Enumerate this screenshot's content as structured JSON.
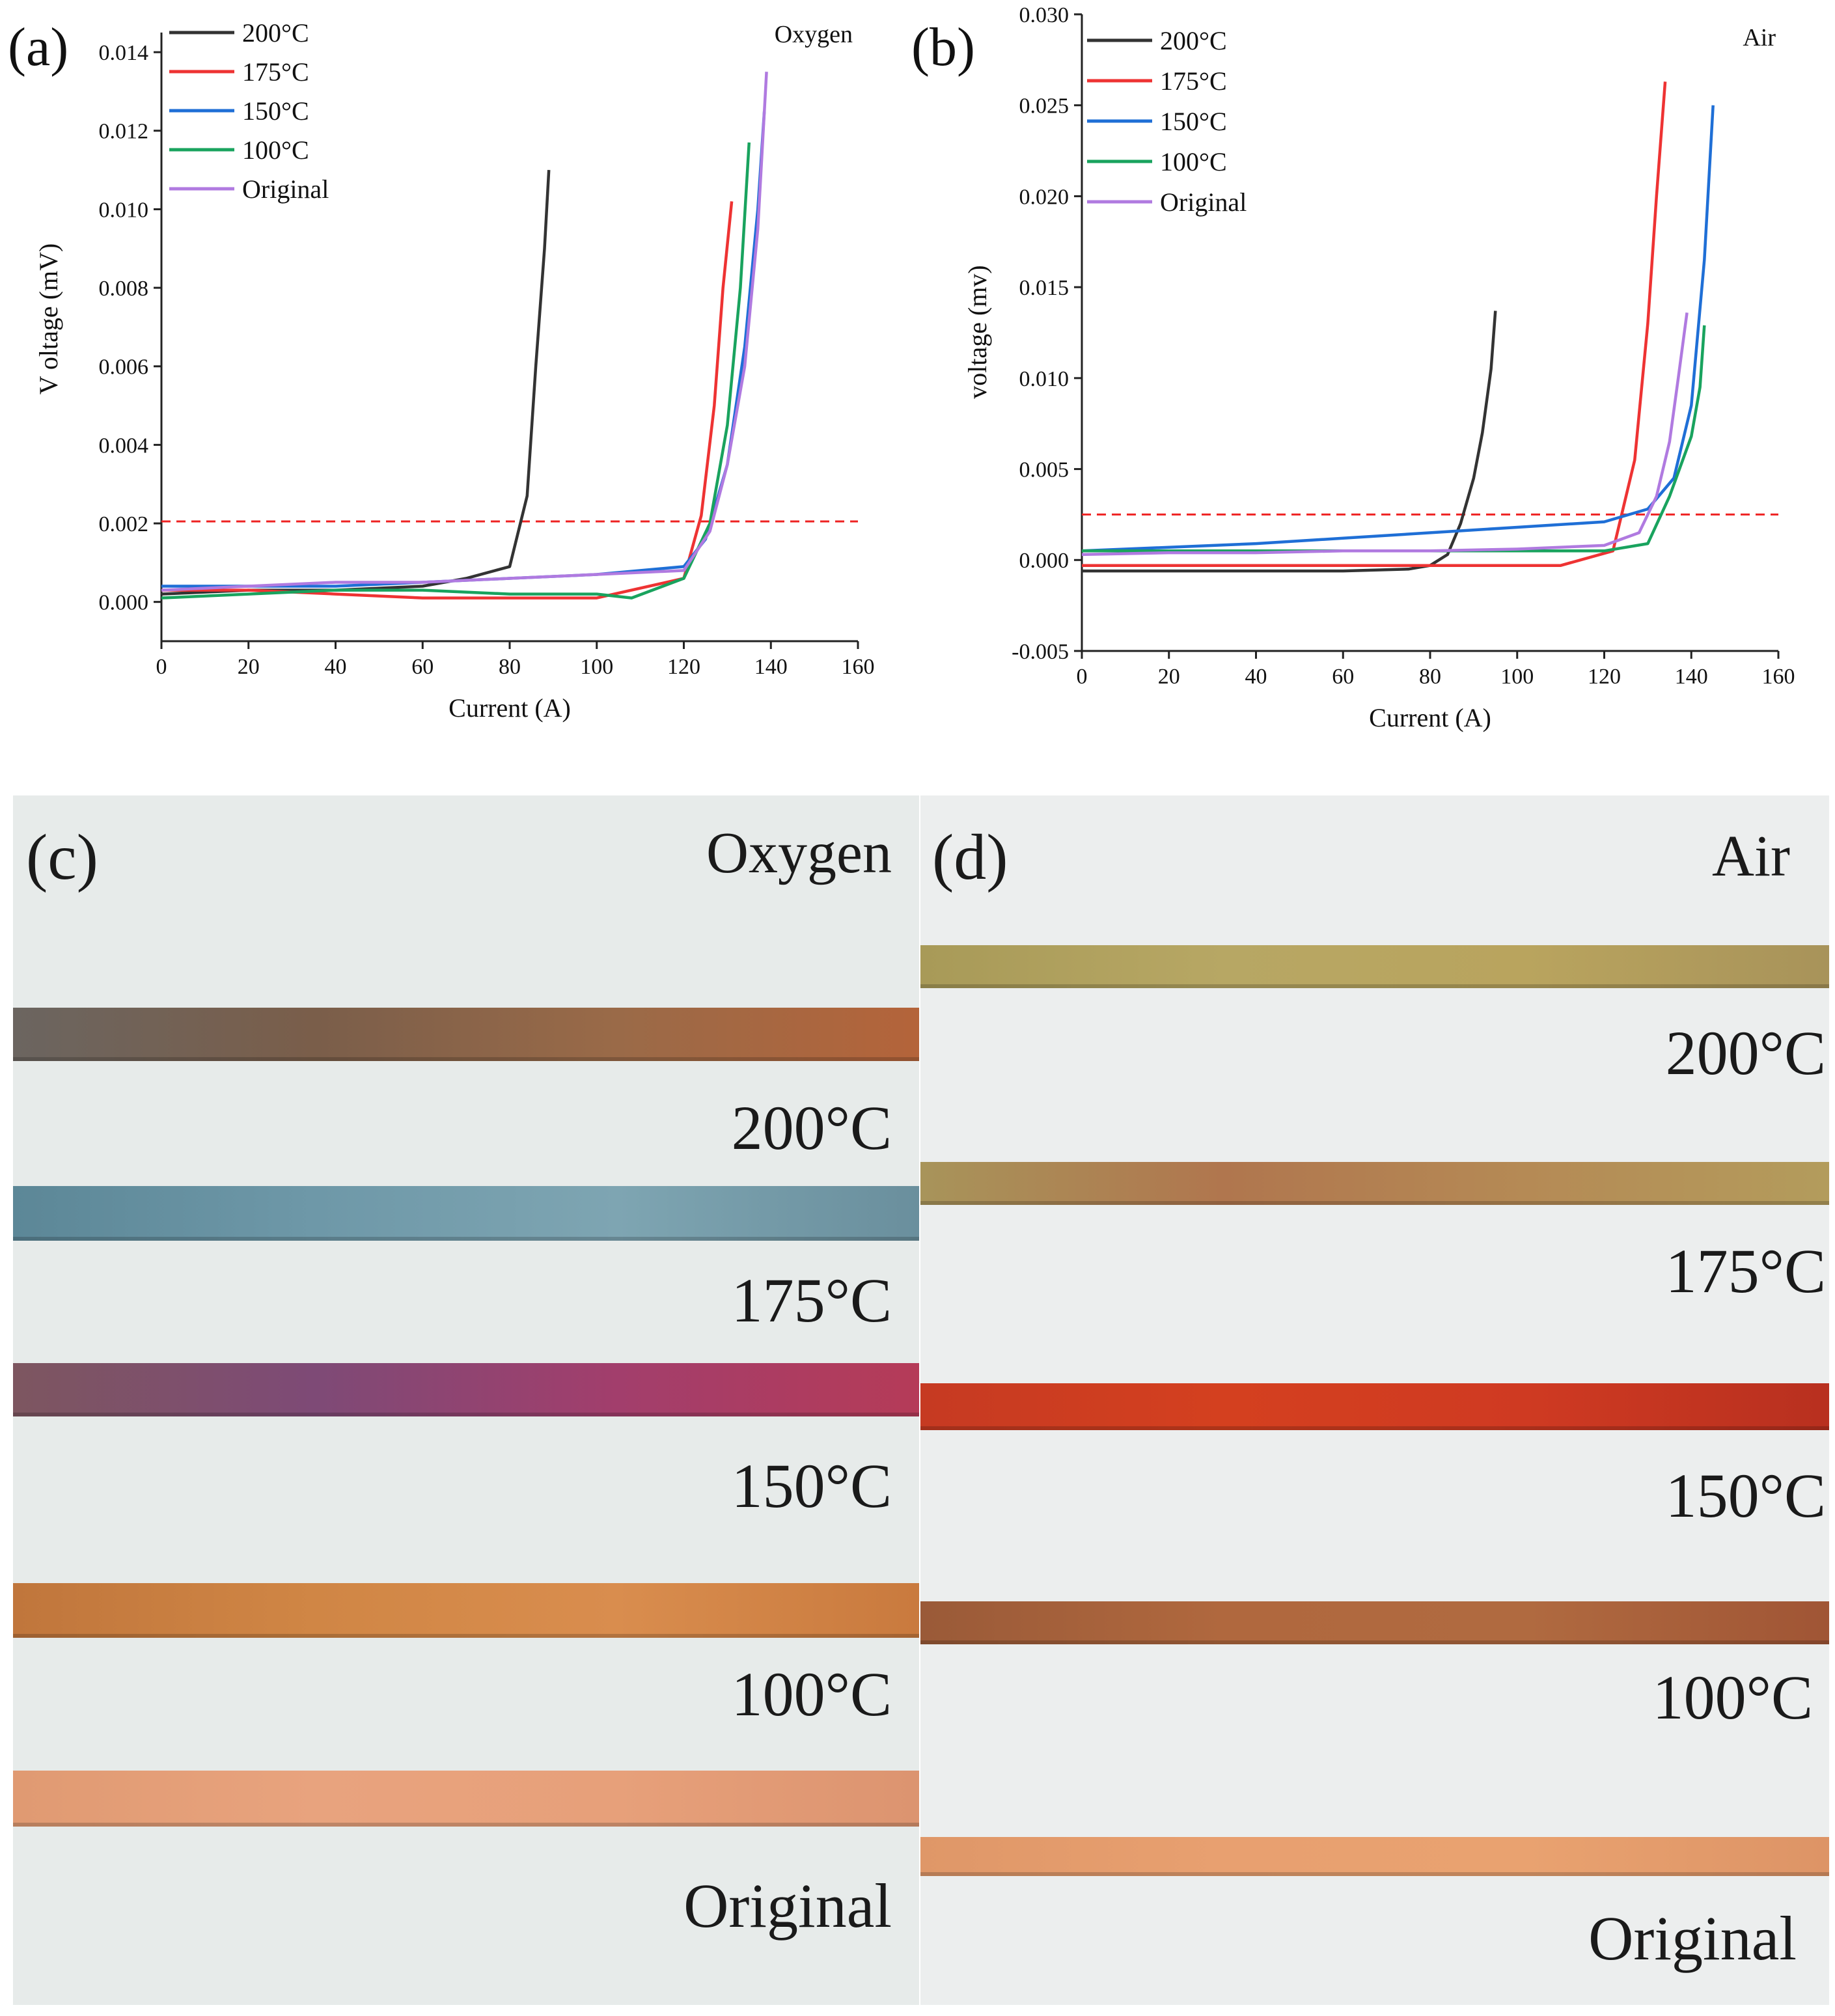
{
  "chart_data": [
    {
      "type": "line",
      "panel_label": "(a)",
      "atmosphere_label": "Oxygen",
      "xlabel": "Current (A)",
      "ylabel": "V oltage (mV)",
      "xlim": [
        0,
        160
      ],
      "ylim": [
        -0.001,
        0.0145
      ],
      "xticks": [
        "0",
        "20",
        "40",
        "60",
        "80",
        "100",
        "120",
        "140",
        "160"
      ],
      "yticks": [
        "0.000",
        "0.002",
        "0.004",
        "0.006",
        "0.008",
        "0.010",
        "0.012",
        "0.014"
      ],
      "threshold": 0.00205,
      "series": [
        {
          "name": "200°C",
          "color": "#333333",
          "points": [
            [
              0,
              0.0002
            ],
            [
              20,
              0.0003
            ],
            [
              40,
              0.0003
            ],
            [
              60,
              0.0004
            ],
            [
              70,
              0.0006
            ],
            [
              80,
              0.0009
            ],
            [
              84,
              0.0027
            ],
            [
              86,
              0.006
            ],
            [
              88,
              0.009
            ],
            [
              89,
              0.011
            ]
          ]
        },
        {
          "name": "175°C",
          "color": "#ee3333",
          "points": [
            [
              0,
              0.0003
            ],
            [
              20,
              0.0003
            ],
            [
              40,
              0.0002
            ],
            [
              60,
              0.0001
            ],
            [
              80,
              0.0001
            ],
            [
              100,
              0.0001
            ],
            [
              120,
              0.0006
            ],
            [
              124,
              0.0022
            ],
            [
              127,
              0.005
            ],
            [
              129,
              0.008
            ],
            [
              131,
              0.0102
            ]
          ]
        },
        {
          "name": "150°C",
          "color": "#1f6fd6",
          "points": [
            [
              0,
              0.0004
            ],
            [
              20,
              0.0004
            ],
            [
              40,
              0.0004
            ],
            [
              60,
              0.0005
            ],
            [
              80,
              0.0006
            ],
            [
              100,
              0.0007
            ],
            [
              120,
              0.0009
            ],
            [
              125,
              0.0016
            ],
            [
              130,
              0.0035
            ],
            [
              134,
              0.0065
            ],
            [
              137,
              0.01
            ],
            [
              138.5,
              0.0125
            ]
          ]
        },
        {
          "name": "100°C",
          "color": "#19a35e",
          "points": [
            [
              0,
              0.0001
            ],
            [
              20,
              0.0002
            ],
            [
              40,
              0.0003
            ],
            [
              60,
              0.0003
            ],
            [
              80,
              0.0002
            ],
            [
              100,
              0.0002
            ],
            [
              108,
              0.0001
            ],
            [
              120,
              0.0006
            ],
            [
              126,
              0.002
            ],
            [
              130,
              0.0045
            ],
            [
              133,
              0.008
            ],
            [
              135,
              0.0117
            ]
          ]
        },
        {
          "name": "Original",
          "color": "#b07ae0",
          "points": [
            [
              0,
              0.0003
            ],
            [
              20,
              0.0004
            ],
            [
              40,
              0.0005
            ],
            [
              60,
              0.0005
            ],
            [
              80,
              0.0006
            ],
            [
              100,
              0.0007
            ],
            [
              120,
              0.0008
            ],
            [
              126,
              0.0018
            ],
            [
              130,
              0.0035
            ],
            [
              134,
              0.006
            ],
            [
              137,
              0.0095
            ],
            [
              139,
              0.0135
            ]
          ]
        }
      ]
    },
    {
      "type": "line",
      "panel_label": "(b)",
      "atmosphere_label": "Air",
      "xlabel": "Current (A)",
      "ylabel": "voltage (mv)",
      "xlim": [
        0,
        160
      ],
      "ylim": [
        -0.005,
        0.03
      ],
      "xticks": [
        "0",
        "20",
        "40",
        "60",
        "80",
        "100",
        "120",
        "140",
        "160"
      ],
      "yticks": [
        "-0.005",
        "0.000",
        "0.005",
        "0.010",
        "0.015",
        "0.020",
        "0.025",
        "0.030"
      ],
      "threshold": 0.0025,
      "series": [
        {
          "name": "200°C",
          "color": "#333333",
          "points": [
            [
              0,
              -0.0006
            ],
            [
              20,
              -0.0006
            ],
            [
              40,
              -0.0006
            ],
            [
              60,
              -0.0006
            ],
            [
              75,
              -0.0005
            ],
            [
              80,
              -0.0003
            ],
            [
              84,
              0.0003
            ],
            [
              87,
              0.002
            ],
            [
              90,
              0.0045
            ],
            [
              92,
              0.007
            ],
            [
              94,
              0.0105
            ],
            [
              95,
              0.0137
            ]
          ]
        },
        {
          "name": "175°C",
          "color": "#ee3333",
          "points": [
            [
              0,
              -0.0003
            ],
            [
              20,
              -0.0003
            ],
            [
              40,
              -0.0003
            ],
            [
              60,
              -0.0003
            ],
            [
              80,
              -0.0003
            ],
            [
              100,
              -0.0003
            ],
            [
              110,
              -0.0003
            ],
            [
              122,
              0.0005
            ],
            [
              127,
              0.0055
            ],
            [
              130,
              0.013
            ],
            [
              132,
              0.02
            ],
            [
              134,
              0.0263
            ]
          ]
        },
        {
          "name": "150°C",
          "color": "#1f6fd6",
          "points": [
            [
              0,
              0.0005
            ],
            [
              20,
              0.0007
            ],
            [
              40,
              0.0009
            ],
            [
              60,
              0.0012
            ],
            [
              80,
              0.0015
            ],
            [
              100,
              0.0018
            ],
            [
              120,
              0.0021
            ],
            [
              130,
              0.0028
            ],
            [
              136,
              0.0045
            ],
            [
              140,
              0.0085
            ],
            [
              143,
              0.0165
            ],
            [
              145,
              0.025
            ]
          ]
        },
        {
          "name": "100°C",
          "color": "#19a35e",
          "points": [
            [
              0,
              0.0005
            ],
            [
              20,
              0.0005
            ],
            [
              40,
              0.0005
            ],
            [
              60,
              0.0005
            ],
            [
              80,
              0.0005
            ],
            [
              100,
              0.0005
            ],
            [
              120,
              0.0005
            ],
            [
              130,
              0.0009
            ],
            [
              135,
              0.0035
            ],
            [
              140,
              0.0068
            ],
            [
              142,
              0.0095
            ],
            [
              143,
              0.0129
            ]
          ]
        },
        {
          "name": "Original",
          "color": "#b07ae0",
          "points": [
            [
              0,
              0.0003
            ],
            [
              20,
              0.0004
            ],
            [
              40,
              0.0004
            ],
            [
              60,
              0.0005
            ],
            [
              80,
              0.0005
            ],
            [
              100,
              0.0006
            ],
            [
              120,
              0.0008
            ],
            [
              128,
              0.0015
            ],
            [
              132,
              0.0035
            ],
            [
              135,
              0.0065
            ],
            [
              137,
              0.01
            ],
            [
              139,
              0.0136
            ]
          ]
        }
      ]
    }
  ],
  "photos": [
    {
      "panel_label": "(c)",
      "atmosphere_label": "Oxygen",
      "strips": [
        {
          "label": "200°C",
          "colors": [
            "#6b6560",
            "#7a5e4a",
            "#9a6a48",
            "#b4643a"
          ]
        },
        {
          "label": "175°C",
          "colors": [
            "#5c8797",
            "#6e98a8",
            "#7ea5b2",
            "#6a8f9d"
          ]
        },
        {
          "label": "150°C",
          "colors": [
            "#7d5660",
            "#7e4a76",
            "#a23e6c",
            "#b53b58"
          ]
        },
        {
          "label": "100°C",
          "colors": [
            "#c0763c",
            "#d08645",
            "#d98d4e",
            "#c97a3e"
          ]
        },
        {
          "label": "Original",
          "colors": [
            "#e09a72",
            "#e8a37e",
            "#e7a07a",
            "#dc9470"
          ]
        }
      ]
    },
    {
      "panel_label": "(d)",
      "atmosphere_label": "Air",
      "strips": [
        {
          "label": "200°C",
          "colors": [
            "#a89a58",
            "#b7a764",
            "#b9a45e",
            "#a8935a"
          ]
        },
        {
          "label": "175°C",
          "colors": [
            "#a8945a",
            "#b0764e",
            "#b58a55",
            "#b39c5c"
          ]
        },
        {
          "label": "150°C",
          "colors": [
            "#c63a22",
            "#d4401f",
            "#cf3a22",
            "#b8301f"
          ]
        },
        {
          "label": "100°C",
          "colors": [
            "#9a5a38",
            "#b0683e",
            "#b06a40",
            "#a05535"
          ]
        },
        {
          "label": "Original",
          "colors": [
            "#df9768",
            "#e8a070",
            "#e9a270",
            "#dd9466"
          ]
        }
      ]
    }
  ]
}
